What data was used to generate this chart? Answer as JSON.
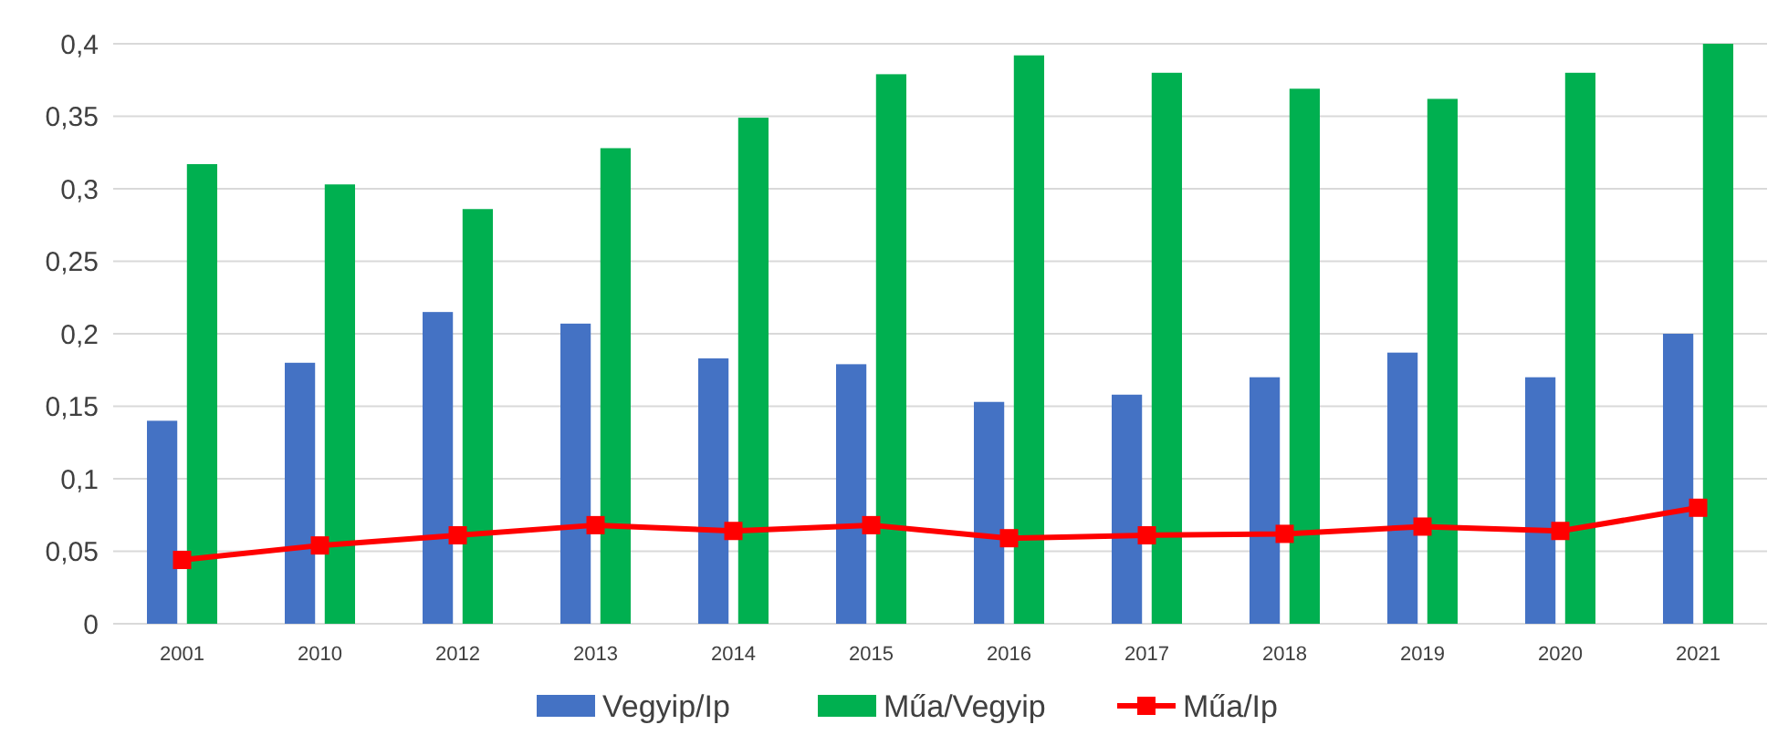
{
  "chart_data": {
    "type": "bar",
    "categories": [
      "2001",
      "2010",
      "2012",
      "2013",
      "2014",
      "2015",
      "2016",
      "2017",
      "2018",
      "2019",
      "2020",
      "2021"
    ],
    "series": [
      {
        "name": "Vegyip/Ip",
        "color": "#4472c4",
        "values": [
          0.14,
          0.18,
          0.215,
          0.207,
          0.183,
          0.179,
          0.153,
          0.158,
          0.17,
          0.187,
          0.17,
          0.2
        ]
      },
      {
        "name": "Műa/Vegyip",
        "color": "#00b050",
        "values": [
          0.317,
          0.303,
          0.286,
          0.328,
          0.349,
          0.379,
          0.392,
          0.38,
          0.369,
          0.362,
          0.38,
          0.4
        ]
      },
      {
        "name": "Műa/Ip",
        "type": "line",
        "color": "#ff0000",
        "marker": "square",
        "values": [
          0.044,
          0.054,
          0.061,
          0.068,
          0.064,
          0.068,
          0.059,
          0.061,
          0.062,
          0.067,
          0.064,
          0.08
        ]
      }
    ],
    "ylim": [
      0,
      0.4
    ],
    "yticks": [
      {
        "value": 0,
        "label": "0"
      },
      {
        "value": 0.05,
        "label": "0,05"
      },
      {
        "value": 0.1,
        "label": "0,1"
      },
      {
        "value": 0.15,
        "label": "0,15"
      },
      {
        "value": 0.2,
        "label": "0,2"
      },
      {
        "value": 0.25,
        "label": "0,25"
      },
      {
        "value": 0.3,
        "label": "0,3"
      },
      {
        "value": 0.35,
        "label": "0,35"
      },
      {
        "value": 0.4,
        "label": "0,4"
      }
    ],
    "grid": "y",
    "legend": "bottom"
  }
}
